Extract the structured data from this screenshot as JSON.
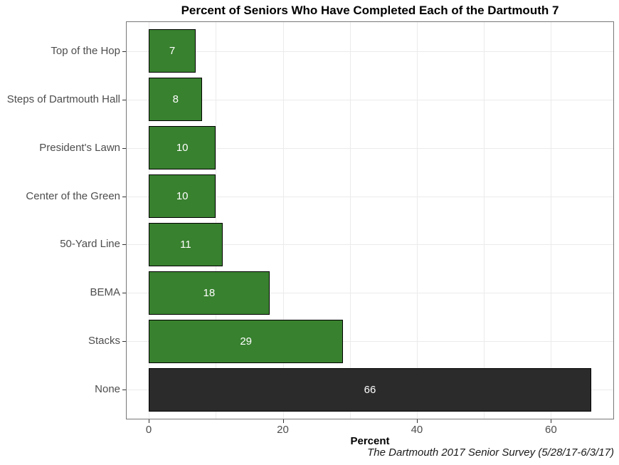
{
  "chart_data": {
    "type": "bar",
    "orientation": "horizontal",
    "title": "Percent of Seniors Who Have Completed Each of the Dartmouth 7",
    "categories": [
      "Top of the Hop",
      "Steps of Dartmouth Hall",
      "President's Lawn",
      "Center of the Green",
      "50-Yard Line",
      "BEMA",
      "Stacks",
      "None"
    ],
    "values": [
      7,
      8,
      10,
      10,
      11,
      18,
      29,
      66
    ],
    "bar_colors": [
      "#38812f",
      "#38812f",
      "#38812f",
      "#38812f",
      "#38812f",
      "#38812f",
      "#38812f",
      "#2b2b2b"
    ],
    "value_label_color": "#ffffff",
    "xlabel": "Percent",
    "caption": "The Dartmouth 2017 Senior Survey (5/28/17-6/3/17)",
    "xlim": [
      0,
      66
    ],
    "x_ticks": [
      0,
      20,
      40,
      60
    ],
    "x_gridlines": [
      0,
      10,
      20,
      30,
      40,
      50,
      60
    ],
    "legend_position": "none",
    "grid": "on"
  },
  "colors": {
    "background": "#ffffff",
    "panel_border": "#777777",
    "gridline": "#ebebeb",
    "axis_text": "#4d4d4d",
    "tick_mark": "#333333",
    "bar_border": "#000000",
    "green_bar": "#38812f",
    "none_bar": "#2b2b2b"
  }
}
